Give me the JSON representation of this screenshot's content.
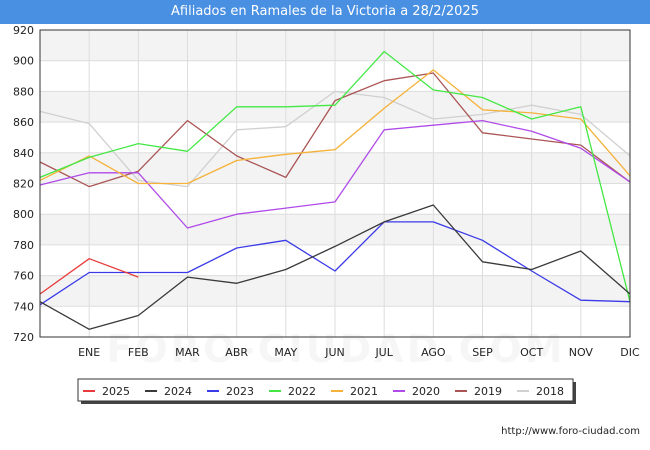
{
  "chart_data": {
    "type": "line",
    "title": "Afiliados en Ramales de la Victoria a 28/2/2025",
    "xlabel": "",
    "ylabel": "",
    "categories": [
      "",
      "ENE",
      "FEB",
      "MAR",
      "ABR",
      "MAY",
      "JUN",
      "JUL",
      "AGO",
      "SEP",
      "OCT",
      "NOV",
      "DIC"
    ],
    "ylim": [
      720,
      920
    ],
    "yticks": [
      720,
      740,
      760,
      780,
      800,
      820,
      840,
      860,
      880,
      900,
      920
    ],
    "grid": true,
    "watermark": "FORO-CIUDAD.COM",
    "legend_position": "bottom",
    "series": [
      {
        "name": "2025",
        "color": "#e83a3a",
        "values": [
          748,
          771,
          759,
          null,
          null,
          null,
          null,
          null,
          null,
          null,
          null,
          null,
          null
        ]
      },
      {
        "name": "2024",
        "color": "#3a3a3a",
        "values": [
          743,
          725,
          734,
          759,
          755,
          764,
          779,
          795,
          806,
          769,
          764,
          776,
          748
        ]
      },
      {
        "name": "2023",
        "color": "#3a3ae8",
        "values": [
          741,
          762,
          762,
          762,
          778,
          783,
          763,
          795,
          795,
          783,
          763,
          744,
          743
        ]
      },
      {
        "name": "2022",
        "color": "#44e844",
        "values": [
          824,
          837,
          846,
          841,
          870,
          870,
          871,
          906,
          881,
          876,
          862,
          870,
          743
        ]
      },
      {
        "name": "2021",
        "color": "#f5b23a",
        "values": [
          822,
          838,
          820,
          820,
          835,
          839,
          842,
          869,
          894,
          868,
          866,
          862,
          825
        ]
      },
      {
        "name": "2020",
        "color": "#b04ae8",
        "values": [
          819,
          827,
          827,
          791,
          800,
          804,
          808,
          855,
          858,
          861,
          854,
          843,
          821
        ]
      },
      {
        "name": "2019",
        "color": "#aa5555",
        "values": [
          834,
          818,
          828,
          861,
          838,
          824,
          874,
          887,
          892,
          853,
          849,
          845,
          821
        ]
      },
      {
        "name": "2018",
        "color": "#d0d0d0",
        "values": [
          867,
          859,
          822,
          818,
          855,
          857,
          880,
          876,
          862,
          865,
          871,
          865,
          838
        ]
      }
    ]
  },
  "footer": {
    "url": "http://www.foro-ciudad.com"
  }
}
